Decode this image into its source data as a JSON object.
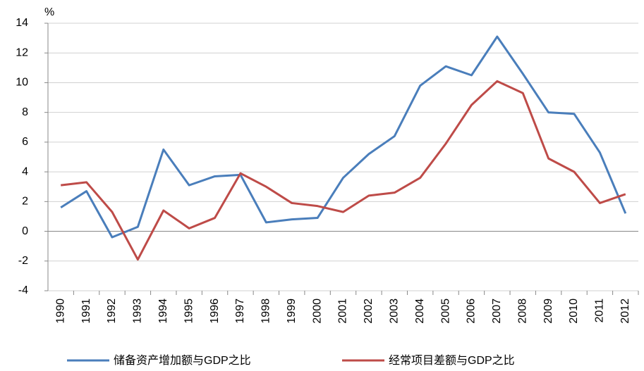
{
  "chart_data": {
    "type": "line",
    "ylabel": "%",
    "categories": [
      "1990",
      "1991",
      "1992",
      "1993",
      "1994",
      "1995",
      "1996",
      "1997",
      "1998",
      "1999",
      "2000",
      "2001",
      "2002",
      "2003",
      "2004",
      "2005",
      "2006",
      "2007",
      "2008",
      "2009",
      "2010",
      "2011",
      "2012"
    ],
    "series": [
      {
        "name": "储备资产增加额与GDP之比",
        "color": "#4a7ebb",
        "values": [
          1.6,
          2.7,
          -0.4,
          0.3,
          5.5,
          3.1,
          3.7,
          3.8,
          0.6,
          0.8,
          0.9,
          3.6,
          5.2,
          6.4,
          9.8,
          11.1,
          10.5,
          13.1,
          10.6,
          8.0,
          7.9,
          5.3,
          1.2
        ]
      },
      {
        "name": "经常项目差额与GDP之比",
        "color": "#be4b48",
        "values": [
          3.1,
          3.3,
          1.3,
          -1.9,
          1.4,
          0.2,
          0.9,
          3.9,
          3.0,
          1.9,
          1.7,
          1.3,
          2.4,
          2.6,
          3.6,
          5.9,
          8.5,
          10.1,
          9.3,
          4.9,
          4.0,
          1.9,
          2.5
        ]
      }
    ],
    "ylim": [
      -4,
      14
    ],
    "yticks": [
      -4,
      -2,
      0,
      2,
      4,
      6,
      8,
      10,
      12,
      14
    ],
    "grid": true,
    "legend": "bottom"
  }
}
